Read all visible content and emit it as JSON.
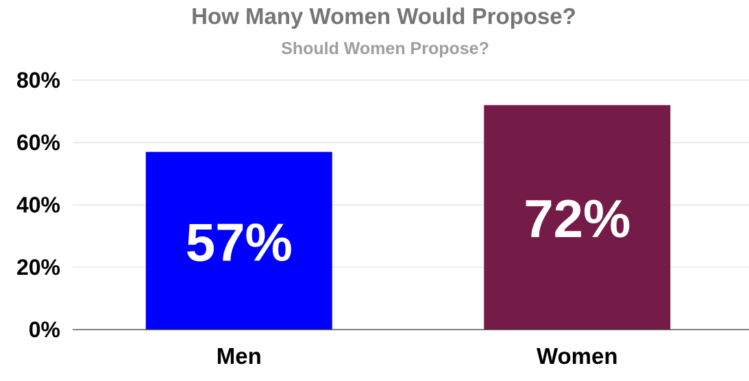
{
  "chart_data": {
    "type": "bar",
    "title": "How Many Women Would Propose?",
    "subtitle": "Should Women Propose?",
    "categories": [
      "Men",
      "Women"
    ],
    "values": [
      57,
      72
    ],
    "data_labels": [
      "57%",
      "72%"
    ],
    "colors": [
      "#0000ff",
      "#741b47"
    ],
    "ylim": [
      0,
      80
    ],
    "yticks": [
      0,
      20,
      40,
      60,
      80
    ],
    "ytick_labels": [
      "0%",
      "20%",
      "40%",
      "60%",
      "80%"
    ],
    "xlabel": "",
    "ylabel": "",
    "grid": true,
    "legend": "none"
  }
}
